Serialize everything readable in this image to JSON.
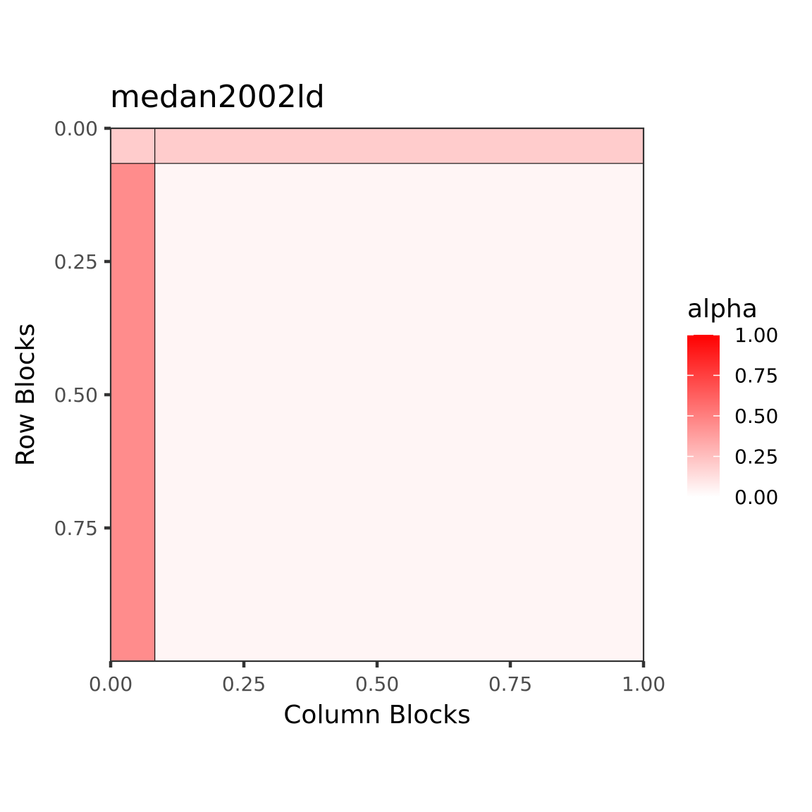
{
  "chart_data": {
    "type": "heatmap",
    "title": "medan2002ld",
    "xlabel": "Column Blocks",
    "ylabel": "Row Blocks",
    "xlim": [
      0,
      1
    ],
    "ylim": [
      0,
      1
    ],
    "y_reversed": true,
    "x_ticks": [
      "0.00",
      "0.25",
      "0.50",
      "0.75",
      "1.00"
    ],
    "y_ticks": [
      "0.00",
      "0.25",
      "0.50",
      "0.75"
    ],
    "col_breaks": [
      0,
      0.083,
      1
    ],
    "row_breaks": [
      0,
      0.066,
      1
    ],
    "cells": [
      {
        "row": 0,
        "col": 0,
        "alpha": 0.2
      },
      {
        "row": 0,
        "col": 1,
        "alpha": 0.2
      },
      {
        "row": 1,
        "col": 0,
        "alpha": 0.45
      },
      {
        "row": 1,
        "col": 1,
        "alpha": 0.04
      }
    ],
    "legend": {
      "title": "alpha",
      "labels": [
        "1.00",
        "0.75",
        "0.50",
        "0.25",
        "0.00"
      ],
      "range": [
        0,
        1
      ],
      "low_color": "#ffffff",
      "high_color": "#ff0000"
    },
    "grid": false
  }
}
